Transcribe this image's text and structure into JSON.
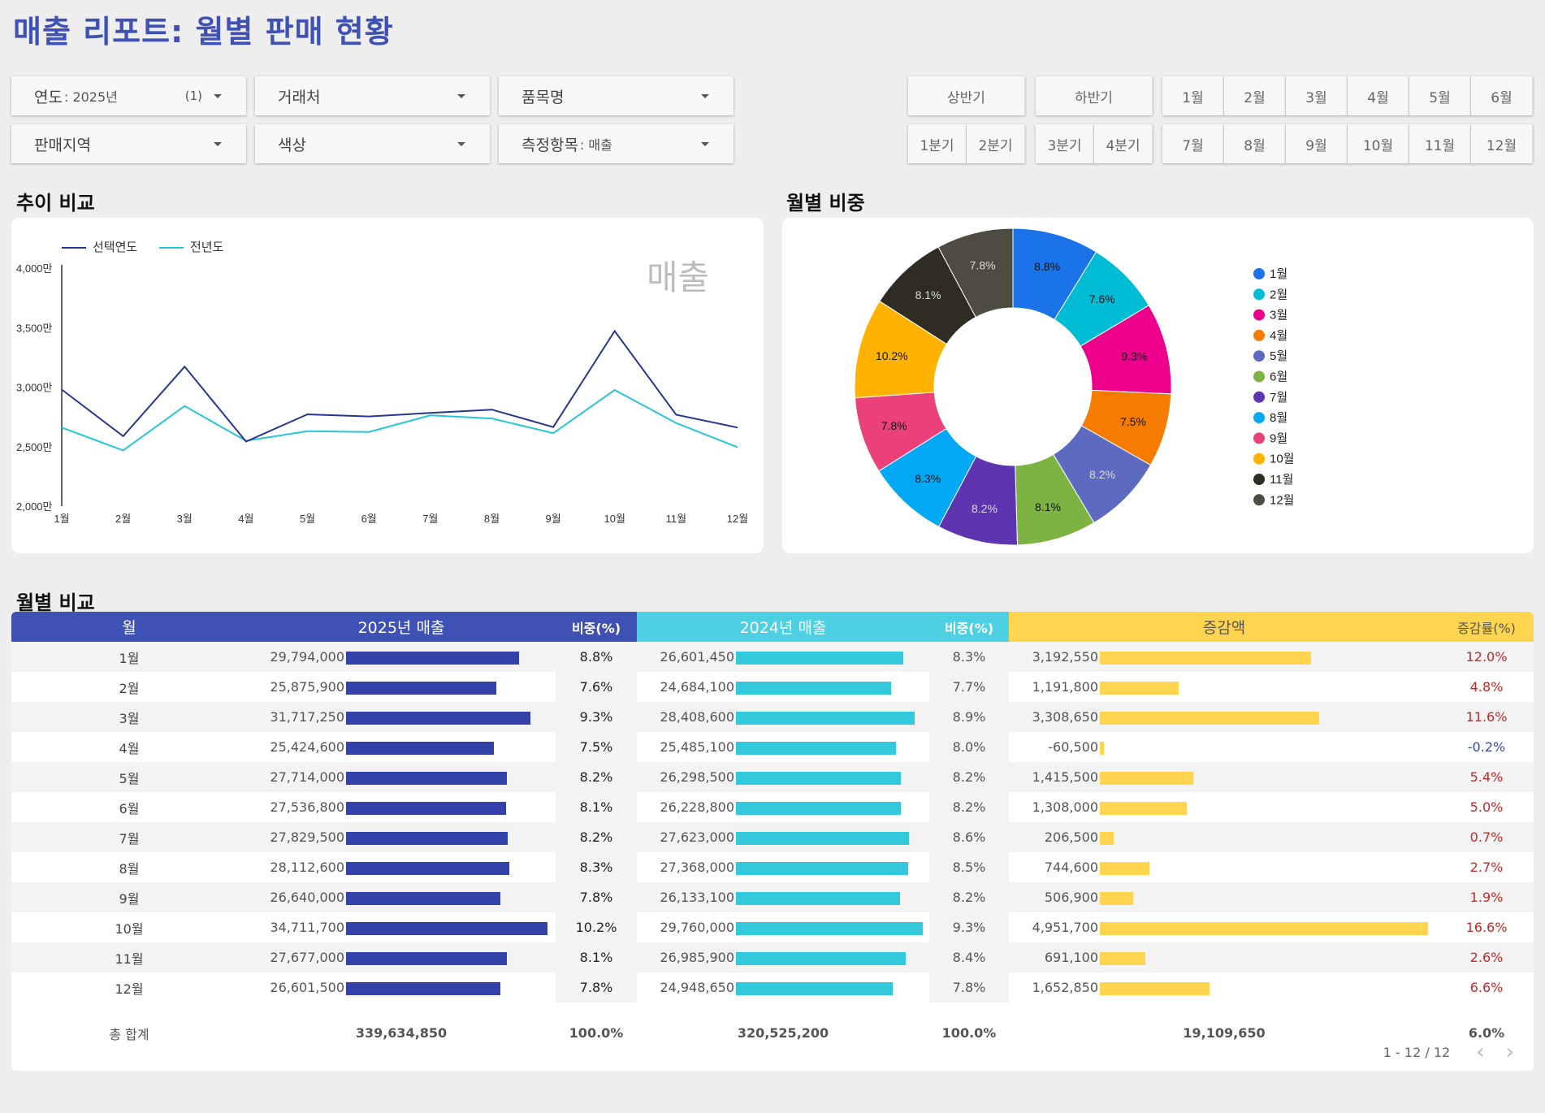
{
  "title": "매출 리포트: 월별 판매 현황",
  "filters": {
    "year": {
      "label": "연도",
      "value": ": 2025년",
      "count": "(1)"
    },
    "client": {
      "label": "거래처"
    },
    "product": {
      "label": "품목명"
    },
    "region": {
      "label": "판매지역"
    },
    "color": {
      "label": "색상"
    },
    "metric": {
      "label": "측정항목",
      "value": ": 매출"
    }
  },
  "periods": {
    "half1": "상반기",
    "half2": "하반기",
    "q1": "1분기",
    "q2": "2분기",
    "q3": "3분기",
    "q4": "4분기",
    "months_top": [
      "1월",
      "2월",
      "3월",
      "4월",
      "5월",
      "6월"
    ],
    "months_bottom": [
      "7월",
      "8월",
      "9월",
      "10월",
      "11월",
      "12월"
    ]
  },
  "sections": {
    "trend": "추이 비교",
    "share": "월별 비중",
    "compare": "월별 비교"
  },
  "chart_data": [
    {
      "type": "line",
      "watermark": "매출",
      "categories": [
        "1월",
        "2월",
        "3월",
        "4월",
        "5월",
        "6월",
        "7월",
        "8월",
        "9월",
        "10월",
        "11월",
        "12월"
      ],
      "series": [
        {
          "name": "선택연도",
          "color": "#283593",
          "values": [
            29794000,
            25875900,
            31717250,
            25424600,
            27714000,
            27536800,
            27829500,
            28112600,
            26640000,
            34711700,
            27677000,
            26601500
          ]
        },
        {
          "name": "전년도",
          "color": "#26c6da",
          "values": [
            26601450,
            24684100,
            28408600,
            25485100,
            26298500,
            26228800,
            27623000,
            27368000,
            26133100,
            29760000,
            26985900,
            24948650
          ]
        }
      ],
      "yticks": [
        "2,000만",
        "2,500만",
        "3,000만",
        "3,500만",
        "4,000만"
      ],
      "ylim": [
        20000000,
        40000000
      ]
    },
    {
      "type": "pie",
      "categories": [
        "1월",
        "2월",
        "3월",
        "4월",
        "5월",
        "6월",
        "7월",
        "8월",
        "9월",
        "10월",
        "11월",
        "12월"
      ],
      "values": [
        8.8,
        7.6,
        9.3,
        7.5,
        8.2,
        8.1,
        8.2,
        8.3,
        7.8,
        10.2,
        8.1,
        7.8
      ],
      "labels": [
        "8.8%",
        "7.6%",
        "9.3%",
        "7.5%",
        "8.2%",
        "8.1%",
        "8.2%",
        "8.3%",
        "7.8%",
        "10.2%",
        "8.1%",
        "7.8%"
      ],
      "colors": [
        "#1a73e8",
        "#00bcd4",
        "#ec008c",
        "#f57c00",
        "#5c6bc0",
        "#7cb342",
        "#5e35b1",
        "#03a9f4",
        "#ec407a",
        "#ffb300",
        "#2e2c23",
        "#4e4c40"
      ]
    }
  ],
  "table": {
    "headers": {
      "month": "월",
      "sales2025": "2025년  매출",
      "share2025": "비중(%)",
      "sales2024": "2024년    매출",
      "share2024": "비중(%)",
      "diff": "증감액",
      "rate": "증감률(%)"
    },
    "rows": [
      {
        "month": "1월",
        "s25": "29,794,000",
        "v25": 29794000,
        "p25": "8.8%",
        "s24": "26,601,450",
        "v24": 26601450,
        "p24": "8.3%",
        "diff": "3,192,550",
        "vd": 3192550,
        "rate": "12.0%"
      },
      {
        "month": "2월",
        "s25": "25,875,900",
        "v25": 25875900,
        "p25": "7.6%",
        "s24": "24,684,100",
        "v24": 24684100,
        "p24": "7.7%",
        "diff": "1,191,800",
        "vd": 1191800,
        "rate": "4.8%"
      },
      {
        "month": "3월",
        "s25": "31,717,250",
        "v25": 31717250,
        "p25": "9.3%",
        "s24": "28,408,600",
        "v24": 28408600,
        "p24": "8.9%",
        "diff": "3,308,650",
        "vd": 3308650,
        "rate": "11.6%"
      },
      {
        "month": "4월",
        "s25": "25,424,600",
        "v25": 25424600,
        "p25": "7.5%",
        "s24": "25,485,100",
        "v24": 25485100,
        "p24": "8.0%",
        "diff": "-60,500",
        "vd": -60500,
        "rate": "-0.2%"
      },
      {
        "month": "5월",
        "s25": "27,714,000",
        "v25": 27714000,
        "p25": "8.2%",
        "s24": "26,298,500",
        "v24": 26298500,
        "p24": "8.2%",
        "diff": "1,415,500",
        "vd": 1415500,
        "rate": "5.4%"
      },
      {
        "month": "6월",
        "s25": "27,536,800",
        "v25": 27536800,
        "p25": "8.1%",
        "s24": "26,228,800",
        "v24": 26228800,
        "p24": "8.2%",
        "diff": "1,308,000",
        "vd": 1308000,
        "rate": "5.0%"
      },
      {
        "month": "7월",
        "s25": "27,829,500",
        "v25": 27829500,
        "p25": "8.2%",
        "s24": "27,623,000",
        "v24": 27623000,
        "p24": "8.6%",
        "diff": "206,500",
        "vd": 206500,
        "rate": "0.7%"
      },
      {
        "month": "8월",
        "s25": "28,112,600",
        "v25": 28112600,
        "p25": "8.3%",
        "s24": "27,368,000",
        "v24": 27368000,
        "p24": "8.5%",
        "diff": "744,600",
        "vd": 744600,
        "rate": "2.7%"
      },
      {
        "month": "9월",
        "s25": "26,640,000",
        "v25": 26640000,
        "p25": "7.8%",
        "s24": "26,133,100",
        "v24": 26133100,
        "p24": "8.2%",
        "diff": "506,900",
        "vd": 506900,
        "rate": "1.9%"
      },
      {
        "month": "10월",
        "s25": "34,711,700",
        "v25": 34711700,
        "p25": "10.2%",
        "s24": "29,760,000",
        "v24": 29760000,
        "p24": "9.3%",
        "diff": "4,951,700",
        "vd": 4951700,
        "rate": "16.6%"
      },
      {
        "month": "11월",
        "s25": "27,677,000",
        "v25": 27677000,
        "p25": "8.1%",
        "s24": "26,985,900",
        "v24": 26985900,
        "p24": "8.4%",
        "diff": "691,100",
        "vd": 691100,
        "rate": "2.6%"
      },
      {
        "month": "12월",
        "s25": "26,601,500",
        "v25": 26601500,
        "p25": "7.8%",
        "s24": "24,948,650",
        "v24": 24948650,
        "p24": "7.8%",
        "diff": "1,652,850",
        "vd": 1652850,
        "rate": "6.6%"
      }
    ],
    "totals": {
      "label": "총 합계",
      "s25": "339,634,850",
      "p25": "100.0%",
      "s24": "320,525,200",
      "p24": "100.0%",
      "diff": "19,109,650",
      "rate": "6.0%"
    },
    "pagination": "1 - 12 / 12"
  },
  "colors": {
    "header2025": "#3f51b5",
    "header2024": "#4dd0e1",
    "headerDiff": "#ffd54f",
    "bar2025": "#3441a8",
    "bar2024": "#33c9dc",
    "barDiff": "#ffd54f",
    "positive": "#c62828",
    "negative": "#3949ab"
  }
}
